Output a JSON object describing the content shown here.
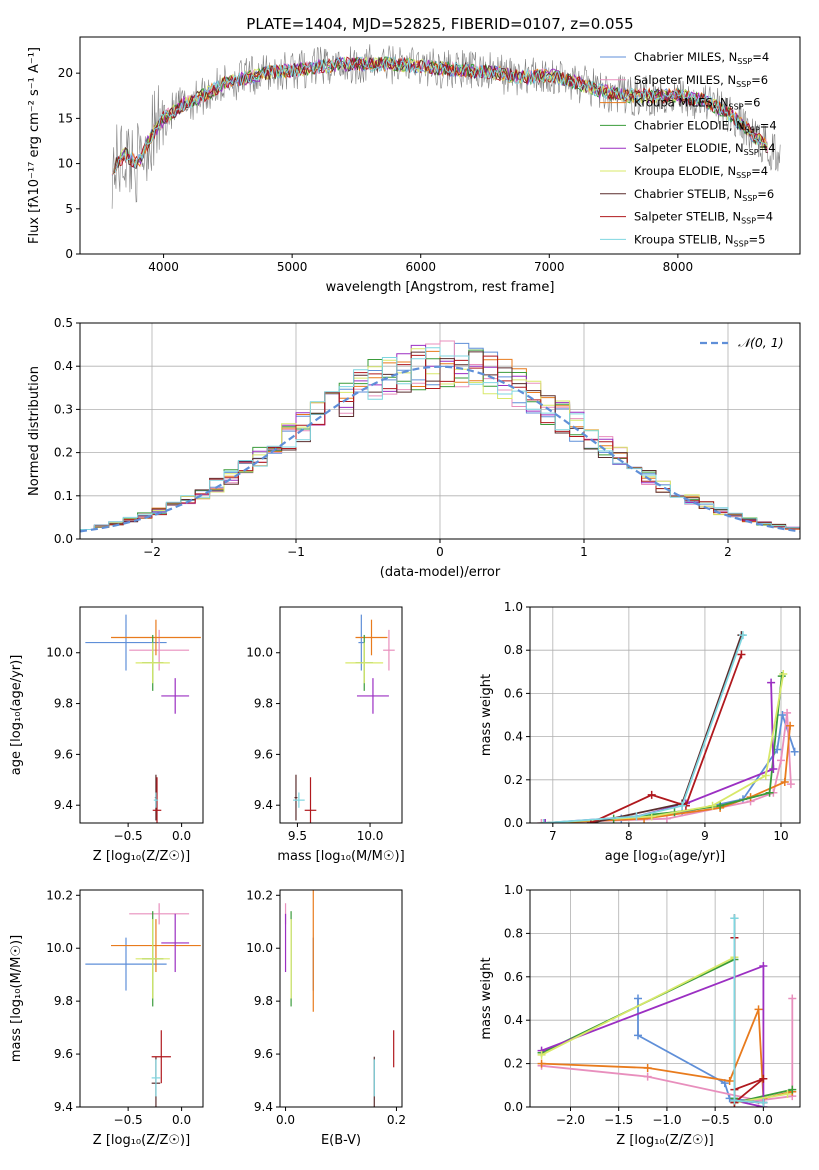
{
  "title": "PLATE=1404, MJD=52825, FIBERID=0107, z=0.055",
  "models": [
    {
      "name": "Chabrier MILES",
      "nssp": "4",
      "color": "#5f8fd8"
    },
    {
      "name": "Salpeter MILES",
      "nssp": "6",
      "color": "#e88fbd"
    },
    {
      "name": "Kroupa MILES",
      "nssp": "6",
      "color": "#e87b1d"
    },
    {
      "name": "Chabrier ELODIE",
      "nssp": "4",
      "color": "#3a9b3a"
    },
    {
      "name": "Salpeter ELODIE",
      "nssp": "4",
      "color": "#9b2fc2"
    },
    {
      "name": "Kroupa ELODIE",
      "nssp": "4",
      "color": "#d8e86a"
    },
    {
      "name": "Chabrier STELIB",
      "nssp": "6",
      "color": "#5a2d2d"
    },
    {
      "name": "Salpeter STELIB",
      "nssp": "4",
      "color": "#b0191e"
    },
    {
      "name": "Kroupa STELIB",
      "nssp": "5",
      "color": "#7fd6e0"
    }
  ],
  "chart_data": [
    {
      "id": "spectrum",
      "type": "line",
      "xlabel": "wavelength [Angstrom, rest frame]",
      "ylabel": "Flux [fλ10⁻¹⁷ erg cm⁻² s⁻¹ A⁻¹]",
      "xlim": [
        3350,
        8950
      ],
      "ylim": [
        0,
        24
      ],
      "xticks": [
        "4000",
        "5000",
        "6000",
        "7000",
        "8000"
      ],
      "yticks": [
        "0",
        "5",
        "10",
        "15",
        "20"
      ],
      "data_color": "#808080",
      "continuum_x": [
        3600,
        3700,
        3800,
        3900,
        4000,
        4150,
        4300,
        4500,
        4800,
        5100,
        5400,
        5800,
        6200,
        6600,
        6800,
        7000,
        7200,
        7400,
        7600,
        7800,
        8000,
        8200,
        8400,
        8600,
        8800
      ],
      "continuum_y": [
        9.5,
        11,
        10,
        13,
        15,
        16.5,
        17.5,
        19,
        20,
        20.5,
        21,
        21,
        20.5,
        20,
        19.5,
        19.8,
        19,
        18,
        17.5,
        17.5,
        17.5,
        17,
        15.5,
        13,
        10.5
      ],
      "legend_position": "right"
    },
    {
      "id": "residual-histogram",
      "type": "line",
      "xlabel": "(data-model)/error",
      "ylabel": "Normed distribution",
      "xlim": [
        -2.5,
        2.5
      ],
      "ylim": [
        0,
        0.5
      ],
      "xticks": [
        "−2",
        "−1",
        "0",
        "1",
        "2"
      ],
      "yticks": [
        "0.0",
        "0.1",
        "0.2",
        "0.3",
        "0.4",
        "0.5"
      ],
      "bin_width": 0.1,
      "legend": "𝒩(0, 1)",
      "normal_color": "#5f8fd8",
      "grid": true
    },
    {
      "id": "age-vs-Z",
      "type": "scatter",
      "xlabel": "Z [log₁₀(Z/Z☉)]",
      "ylabel": "age  [log₁₀(age/yr)]",
      "xlim": [
        -0.95,
        0.2
      ],
      "ylim": [
        9.33,
        10.18
      ],
      "xticks": [
        "−0.5",
        "0.0"
      ],
      "yticks": [
        "9.4",
        "9.6",
        "9.8",
        "10.0"
      ],
      "points": [
        {
          "x": -0.52,
          "y": 10.04,
          "xerr": 0.38,
          "yerr": 0.11
        },
        {
          "x": -0.21,
          "y": 10.01,
          "xerr": 0.28,
          "yerr": 0.08
        },
        {
          "x": -0.24,
          "y": 10.06,
          "xerr": 0.42,
          "yerr": 0.07
        },
        {
          "x": -0.27,
          "y": 9.96,
          "xerr": 0.1,
          "yerr": 0.11
        },
        {
          "x": -0.06,
          "y": 9.83,
          "xerr": 0.13,
          "yerr": 0.07
        },
        {
          "x": -0.27,
          "y": 9.96,
          "xerr": 0.16,
          "yerr": 0.08
        },
        {
          "x": -0.24,
          "y": 9.43,
          "xerr": 0.01,
          "yerr": 0.09
        },
        {
          "x": -0.23,
          "y": 9.38,
          "xerr": 0.04,
          "yerr": 0.13
        },
        {
          "x": -0.24,
          "y": 9.42,
          "xerr": 0.02,
          "yerr": 0.03
        }
      ]
    },
    {
      "id": "age-vs-mass",
      "type": "scatter",
      "xlabel": "mass [log₁₀(M/M☉)]",
      "ylabel": "",
      "xlim": [
        9.38,
        10.22
      ],
      "ylim": [
        9.33,
        10.18
      ],
      "xticks": [
        "9.5",
        "10.0"
      ],
      "yticks": [
        "9.4",
        "9.6",
        "9.8",
        "10.0"
      ],
      "points": [
        {
          "x": 9.94,
          "y": 10.04,
          "xerr": 0.02,
          "yerr": 0.11
        },
        {
          "x": 10.13,
          "y": 10.01,
          "xerr": 0.04,
          "yerr": 0.08
        },
        {
          "x": 10.01,
          "y": 10.06,
          "xerr": 0.11,
          "yerr": 0.07
        },
        {
          "x": 9.96,
          "y": 9.96,
          "xerr": 0.06,
          "yerr": 0.11
        },
        {
          "x": 10.02,
          "y": 9.83,
          "xerr": 0.11,
          "yerr": 0.07
        },
        {
          "x": 9.96,
          "y": 9.96,
          "xerr": 0.13,
          "yerr": 0.08
        },
        {
          "x": 9.49,
          "y": 9.43,
          "xerr": 0.01,
          "yerr": 0.09
        },
        {
          "x": 9.59,
          "y": 9.38,
          "xerr": 0.04,
          "yerr": 0.13
        },
        {
          "x": 9.51,
          "y": 9.42,
          "xerr": 0.04,
          "yerr": 0.03
        }
      ]
    },
    {
      "id": "mass-weight-vs-age",
      "type": "line",
      "xlabel": "age  [log₁₀(age/yr)]",
      "ylabel": "mass weight",
      "xlim": [
        6.7,
        10.25
      ],
      "ylim": [
        0,
        1
      ],
      "xticks": [
        "7",
        "8",
        "9",
        "10"
      ],
      "yticks": [
        "0.0",
        "0.2",
        "0.4",
        "0.6",
        "0.8",
        "1.0"
      ],
      "grid": true,
      "series_ages": [
        [
          6.88,
          7.9,
          8.7,
          9.5,
          9.95,
          10.02,
          10.18
        ],
        [
          6.85,
          8.5,
          9.6,
          9.9,
          10.0,
          10.08,
          10.13
        ],
        [
          6.9,
          8.2,
          9.2,
          9.6,
          10.05,
          10.12
        ],
        [
          6.9,
          7.8,
          8.6,
          9.2,
          9.85,
          10.01
        ],
        [
          6.9,
          8.1,
          8.75,
          9.9,
          9.87
        ],
        [
          6.88,
          8.3,
          9.1,
          9.8,
          10.03
        ],
        [
          7.5,
          8.7,
          9.48
        ],
        [
          7.5,
          8.3,
          8.75,
          9.48
        ],
        [
          6.88,
          8.1,
          8.7,
          9.5
        ]
      ],
      "series_weights": [
        [
          0.0,
          0.02,
          0.05,
          0.11,
          0.34,
          0.5,
          0.33
        ],
        [
          0.0,
          0.02,
          0.1,
          0.14,
          0.29,
          0.51,
          0.18
        ],
        [
          0.0,
          0.02,
          0.07,
          0.12,
          0.19,
          0.45
        ],
        [
          0.0,
          0.02,
          0.05,
          0.08,
          0.14,
          0.68
        ],
        [
          0.0,
          0.03,
          0.09,
          0.25,
          0.65
        ],
        [
          0.0,
          0.03,
          0.08,
          0.22,
          0.69
        ],
        [
          0.0,
          0.09,
          0.87
        ],
        [
          0.0,
          0.13,
          0.08,
          0.78
        ],
        [
          0.0,
          0.03,
          0.08,
          0.87
        ]
      ]
    },
    {
      "id": "mass-vs-Z",
      "type": "scatter",
      "xlabel": "Z [log₁₀(Z/Z☉)]",
      "ylabel": "mass [log₁₀(M/M☉)]",
      "xlim": [
        -0.95,
        0.2
      ],
      "ylim": [
        9.4,
        10.22
      ],
      "xticks": [
        "−0.5",
        "0.0"
      ],
      "yticks": [
        "9.4",
        "9.6",
        "9.8",
        "10.0",
        "10.2"
      ],
      "points": [
        {
          "x": -0.52,
          "y": 9.94,
          "xerr": 0.38,
          "yerr": 0.1
        },
        {
          "x": -0.21,
          "y": 10.13,
          "xerr": 0.28,
          "yerr": 0.04
        },
        {
          "x": -0.24,
          "y": 10.01,
          "xerr": 0.42,
          "yerr": 0.1
        },
        {
          "x": -0.27,
          "y": 9.96,
          "xerr": 0.1,
          "yerr": 0.18
        },
        {
          "x": -0.06,
          "y": 10.02,
          "xerr": 0.13,
          "yerr": 0.11
        },
        {
          "x": -0.27,
          "y": 9.96,
          "xerr": 0.16,
          "yerr": 0.15
        },
        {
          "x": -0.24,
          "y": 9.49,
          "xerr": 0.04,
          "yerr": 0.1
        },
        {
          "x": -0.19,
          "y": 9.59,
          "xerr": 0.09,
          "yerr": 0.1
        },
        {
          "x": -0.24,
          "y": 9.51,
          "xerr": 0.04,
          "yerr": 0.07
        }
      ]
    },
    {
      "id": "mass-vs-ebv",
      "type": "scatter",
      "xlabel": "E(B-V)",
      "ylabel": "",
      "xlim": [
        -0.01,
        0.21
      ],
      "ylim": [
        9.4,
        10.22
      ],
      "xticks": [
        "0.0",
        "0.2"
      ],
      "yticks": [
        "9.4",
        "9.6",
        "9.8",
        "10.0",
        "10.2"
      ],
      "points": [
        {
          "x": 0.05,
          "y": 9.94,
          "xerr": 0,
          "yerr": 0.1
        },
        {
          "x": 0.0,
          "y": 10.13,
          "xerr": 0,
          "yerr": 0.04
        },
        {
          "x": 0.05,
          "y": 10.01,
          "xerr": 0,
          "yerr": 0.25
        },
        {
          "x": 0.01,
          "y": 9.96,
          "xerr": 0,
          "yerr": 0.18
        },
        {
          "x": 0.0,
          "y": 10.02,
          "xerr": 0,
          "yerr": 0.11
        },
        {
          "x": 0.01,
          "y": 9.96,
          "xerr": 0,
          "yerr": 0.15
        },
        {
          "x": 0.16,
          "y": 9.49,
          "xerr": 0,
          "yerr": 0.1
        },
        {
          "x": 0.195,
          "y": 9.62,
          "xerr": 0,
          "yerr": 0.07
        },
        {
          "x": 0.16,
          "y": 9.51,
          "xerr": 0,
          "yerr": 0.07
        }
      ]
    },
    {
      "id": "mass-weight-vs-Z",
      "type": "line",
      "xlabel": "Z [log₁₀(Z/Z☉)]",
      "ylabel": "mass weight",
      "xlim": [
        -2.42,
        0.38
      ],
      "ylim": [
        0,
        1
      ],
      "xticks": [
        "−2.0",
        "−1.5",
        "−1.0",
        "−0.5",
        "0.0"
      ],
      "yticks": [
        "0.0",
        "0.2",
        "0.4",
        "0.6",
        "0.8",
        "1.0"
      ],
      "grid": true,
      "series_Z": [
        [
          -1.3,
          -1.3,
          -0.4,
          -0.35,
          0.0
        ],
        [
          -2.3,
          -1.2,
          -0.05,
          0.3,
          0.3
        ],
        [
          -2.3,
          -1.2,
          -0.35,
          -0.05,
          0.0,
          0.3
        ],
        [
          -2.3,
          -0.3,
          -0.3,
          -0.3,
          0.3
        ],
        [
          -2.3,
          0.0,
          0.0,
          -0.3,
          0.0
        ],
        [
          -2.3,
          -0.3,
          -0.3,
          0.25
        ],
        [
          -0.3,
          -0.3,
          0.0
        ],
        [
          -0.3,
          -0.3,
          0.0,
          -0.3
        ],
        [
          -0.3,
          -0.3,
          0.0
        ]
      ],
      "series_weights": [
        [
          0.5,
          0.33,
          0.11,
          0.04,
          0.02
        ],
        [
          0.19,
          0.14,
          0.03,
          0.05,
          0.5
        ],
        [
          0.2,
          0.18,
          0.12,
          0.45,
          0.04,
          0.07
        ],
        [
          0.25,
          0.68,
          0.04,
          0.02,
          0.08
        ],
        [
          0.26,
          0.65,
          0.02,
          0.03,
          0.0
        ],
        [
          0.24,
          0.69,
          0.02,
          0.06
        ],
        [
          0.87,
          0.03,
          0.02
        ],
        [
          0.78,
          0.08,
          0.13,
          0.02
        ],
        [
          0.87,
          0.03,
          0.02
        ]
      ]
    }
  ]
}
